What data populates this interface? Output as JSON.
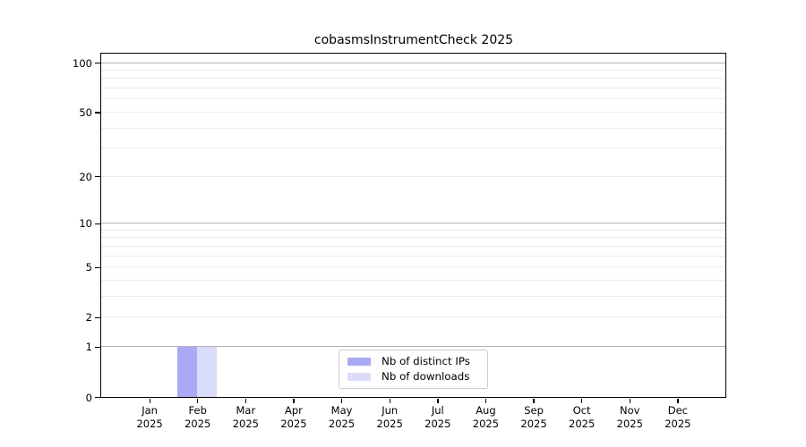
{
  "chart_data": {
    "type": "bar",
    "title": "cobasmsInstrumentCheck 2025",
    "categories": [
      "Jan",
      "Feb",
      "Mar",
      "Apr",
      "May",
      "Jun",
      "Jul",
      "Aug",
      "Sep",
      "Oct",
      "Nov",
      "Dec"
    ],
    "x_tick_year": "2025",
    "series": [
      {
        "name": "Nb of distinct IPs",
        "color": "#aaaaf4",
        "values": [
          0,
          1,
          0,
          0,
          0,
          0,
          0,
          0,
          0,
          0,
          0,
          0
        ]
      },
      {
        "name": "Nb of downloads",
        "color": "#dbdbfa",
        "values": [
          0,
          1,
          0,
          0,
          0,
          0,
          0,
          0,
          0,
          0,
          0,
          0
        ]
      }
    ],
    "y_ticks": [
      0,
      1,
      2,
      5,
      10,
      20,
      50,
      100
    ],
    "major_gridlines": [
      1,
      10,
      100
    ],
    "minor_gridlines": [
      2,
      3,
      4,
      5,
      6,
      7,
      8,
      9,
      20,
      30,
      40,
      50,
      60,
      70,
      80,
      90
    ],
    "scale": "log1p",
    "ylim": [
      0,
      100
    ],
    "xlabel": "",
    "ylabel": "",
    "grid": true,
    "legend": {
      "position": "lower center",
      "border_color": "#cccccc"
    },
    "colors": {
      "major_grid": "#b4b4b4",
      "minor_grid": "#ebebeb",
      "spine": "#000000",
      "background": "#ffffff"
    }
  }
}
